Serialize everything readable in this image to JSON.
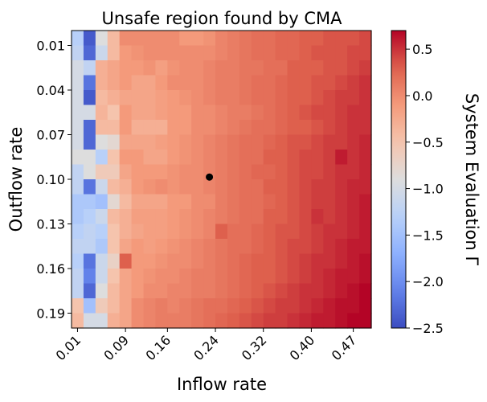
{
  "chart_data": {
    "type": "heatmap",
    "title": "Unsafe region found by CMA",
    "xlabel": "Inflow rate",
    "ylabel": "Outflow rate",
    "colorbar_label": "System Evaluation Γ",
    "colormap": "coolwarm",
    "vmin": -2.5,
    "vmax": 0.7,
    "x_tick_labels": [
      "0.01",
      "0.09",
      "0.16",
      "0.24",
      "0.32",
      "0.40",
      "0.47"
    ],
    "x_tick_positions": [
      0.01,
      0.09,
      0.16,
      0.24,
      0.32,
      0.4,
      0.47
    ],
    "y_tick_labels": [
      "0.01",
      "0.04",
      "0.07",
      "0.10",
      "0.13",
      "0.16",
      "0.19"
    ],
    "y_tick_positions": [
      0.01,
      0.04,
      0.07,
      0.1,
      0.13,
      0.16,
      0.19
    ],
    "colorbar_ticks": [
      "0.5",
      "0.0",
      "−0.5",
      "−1.0",
      "−1.5",
      "−2.0",
      "−2.5"
    ],
    "colorbar_tick_values": [
      0.5,
      0.0,
      -0.5,
      -1.0,
      -1.5,
      -2.0,
      -2.5
    ],
    "grid": false,
    "x_range": [
      0.0,
      0.5
    ],
    "y_range": [
      0.0,
      0.2
    ],
    "x_centers": [
      0.01,
      0.03,
      0.05,
      0.07,
      0.09,
      0.11,
      0.13,
      0.15,
      0.17,
      0.19,
      0.21,
      0.23,
      0.25,
      0.27,
      0.29,
      0.31,
      0.33,
      0.35,
      0.37,
      0.39,
      0.41,
      0.43,
      0.45,
      0.47,
      0.49
    ],
    "y_centers": [
      0.005,
      0.015,
      0.025,
      0.035,
      0.045,
      0.055,
      0.065,
      0.075,
      0.085,
      0.095,
      0.105,
      0.115,
      0.125,
      0.135,
      0.145,
      0.155,
      0.165,
      0.175,
      0.185,
      0.195
    ],
    "values": [
      [
        -1.3,
        -2.4,
        -0.9,
        -0.4,
        0.0,
        0.0,
        0.0,
        0.0,
        0.0,
        -0.1,
        -0.1,
        -0.05,
        0.05,
        0.1,
        0.15,
        0.2,
        0.2,
        0.25,
        0.25,
        0.3,
        0.3,
        0.35,
        0.35,
        0.35,
        0.4
      ],
      [
        -1.2,
        -2.3,
        -1.1,
        -0.4,
        -0.1,
        -0.05,
        0.0,
        0.0,
        0.0,
        0.0,
        0.0,
        0.0,
        0.05,
        0.1,
        0.15,
        0.2,
        0.2,
        0.25,
        0.25,
        0.3,
        0.35,
        0.35,
        0.35,
        0.4,
        0.4
      ],
      [
        -1.0,
        -1.2,
        -0.3,
        -0.2,
        -0.1,
        -0.1,
        -0.05,
        -0.15,
        -0.05,
        0.0,
        0.0,
        0.05,
        0.1,
        0.1,
        0.15,
        0.15,
        0.2,
        0.2,
        0.3,
        0.3,
        0.3,
        0.35,
        0.35,
        0.4,
        0.45
      ],
      [
        -1.0,
        -2.2,
        -0.3,
        -0.2,
        -0.1,
        -0.2,
        -0.2,
        -0.1,
        0.0,
        0.0,
        0.0,
        0.05,
        0.1,
        0.1,
        0.15,
        0.2,
        0.2,
        0.25,
        0.3,
        0.3,
        0.35,
        0.35,
        0.4,
        0.45,
        0.5
      ],
      [
        -1.0,
        -2.4,
        -0.4,
        -0.3,
        -0.2,
        -0.2,
        -0.2,
        -0.15,
        -0.1,
        -0.05,
        0.0,
        0.05,
        0.1,
        0.1,
        0.15,
        0.2,
        0.2,
        0.25,
        0.3,
        0.3,
        0.35,
        0.4,
        0.45,
        0.45,
        0.5
      ],
      [
        -1.0,
        -1.0,
        -0.35,
        -0.5,
        -0.1,
        -0.2,
        -0.2,
        -0.15,
        -0.1,
        -0.1,
        0.0,
        0.0,
        0.05,
        0.1,
        0.1,
        0.15,
        0.2,
        0.25,
        0.3,
        0.35,
        0.4,
        0.4,
        0.45,
        0.5,
        0.5
      ],
      [
        -1.0,
        -2.3,
        -0.4,
        -0.4,
        -0.1,
        -0.3,
        -0.3,
        -0.3,
        -0.1,
        -0.1,
        0.0,
        0.0,
        0.05,
        0.1,
        0.15,
        0.2,
        0.2,
        0.25,
        0.3,
        0.3,
        0.35,
        0.4,
        0.45,
        0.5,
        0.5
      ],
      [
        -1.0,
        -2.3,
        -0.9,
        -0.8,
        -0.2,
        -0.2,
        -0.2,
        -0.15,
        -0.1,
        -0.05,
        0.0,
        0.05,
        0.1,
        0.15,
        0.2,
        0.2,
        0.25,
        0.3,
        0.35,
        0.35,
        0.4,
        0.45,
        0.45,
        0.5,
        0.55
      ],
      [
        -0.9,
        -0.9,
        -1.3,
        -0.5,
        -0.1,
        -0.1,
        -0.2,
        -0.2,
        -0.1,
        -0.05,
        0.0,
        0.05,
        0.1,
        0.15,
        0.2,
        0.2,
        0.3,
        0.3,
        0.35,
        0.4,
        0.4,
        0.45,
        0.6,
        0.5,
        0.55
      ],
      [
        -1.2,
        -0.9,
        -0.6,
        -0.6,
        -0.2,
        -0.1,
        -0.1,
        -0.1,
        -0.05,
        0.0,
        0.0,
        0.05,
        0.1,
        0.15,
        0.2,
        0.25,
        0.25,
        0.3,
        0.35,
        0.4,
        0.4,
        0.45,
        0.5,
        0.5,
        0.55
      ],
      [
        -1.2,
        -2.2,
        -1.1,
        -0.4,
        -0.3,
        -0.1,
        -0.05,
        0.0,
        -0.05,
        0.0,
        0.0,
        0.05,
        0.1,
        0.15,
        0.2,
        0.2,
        0.3,
        0.3,
        0.35,
        0.4,
        0.45,
        0.45,
        0.5,
        0.55,
        0.55
      ],
      [
        -1.4,
        -1.4,
        -1.5,
        -0.8,
        -0.4,
        -0.2,
        -0.2,
        -0.2,
        -0.1,
        -0.1,
        0.0,
        0.0,
        0.1,
        0.15,
        0.2,
        0.2,
        0.25,
        0.3,
        0.35,
        0.4,
        0.45,
        0.45,
        0.5,
        0.55,
        0.6
      ],
      [
        -1.4,
        -1.3,
        -1.1,
        -0.4,
        -0.3,
        -0.15,
        -0.15,
        -0.15,
        -0.1,
        -0.05,
        0.0,
        0.05,
        0.1,
        0.15,
        0.2,
        0.2,
        0.3,
        0.3,
        0.35,
        0.4,
        0.5,
        0.45,
        0.5,
        0.55,
        0.6
      ],
      [
        -1.3,
        -1.2,
        -1.3,
        -0.5,
        -0.3,
        -0.2,
        -0.15,
        -0.15,
        -0.1,
        -0.05,
        0.0,
        0.05,
        0.3,
        0.2,
        0.2,
        0.25,
        0.3,
        0.35,
        0.35,
        0.4,
        0.45,
        0.5,
        0.5,
        0.55,
        0.6
      ],
      [
        -1.2,
        -1.2,
        -1.4,
        -0.5,
        -0.2,
        -0.1,
        -0.15,
        -0.1,
        -0.05,
        0.0,
        0.05,
        0.1,
        0.15,
        0.2,
        0.2,
        0.25,
        0.3,
        0.35,
        0.4,
        0.4,
        0.45,
        0.5,
        0.55,
        0.6,
        0.6
      ],
      [
        -1.3,
        -2.2,
        -1.1,
        -0.7,
        0.3,
        -0.1,
        -0.1,
        -0.05,
        0.0,
        0.0,
        0.05,
        0.1,
        0.15,
        0.2,
        0.25,
        0.3,
        0.3,
        0.35,
        0.4,
        0.45,
        0.5,
        0.5,
        0.55,
        0.6,
        0.65
      ],
      [
        -1.2,
        -2.1,
        -1.1,
        -0.5,
        -0.2,
        -0.1,
        -0.05,
        0.0,
        0.0,
        0.05,
        0.1,
        0.1,
        0.15,
        0.2,
        0.25,
        0.3,
        0.3,
        0.35,
        0.4,
        0.45,
        0.5,
        0.55,
        0.6,
        0.6,
        0.65
      ],
      [
        -1.2,
        -2.3,
        -0.9,
        -0.4,
        -0.2,
        -0.1,
        0.0,
        0.0,
        0.05,
        0.05,
        0.1,
        0.1,
        0.15,
        0.2,
        0.25,
        0.3,
        0.35,
        0.4,
        0.45,
        0.5,
        0.5,
        0.55,
        0.6,
        0.65,
        0.7
      ],
      [
        -0.5,
        -1.5,
        -0.6,
        -0.4,
        -0.2,
        0.0,
        0.05,
        0.1,
        0.05,
        0.1,
        0.15,
        0.2,
        0.2,
        0.25,
        0.3,
        0.35,
        0.4,
        0.45,
        0.45,
        0.5,
        0.55,
        0.6,
        0.65,
        0.65,
        0.7
      ],
      [
        -0.4,
        -1.0,
        -1.0,
        -0.3,
        -0.2,
        0.0,
        0.05,
        0.1,
        0.1,
        0.1,
        0.15,
        0.2,
        0.25,
        0.3,
        0.35,
        0.4,
        0.45,
        0.45,
        0.5,
        0.55,
        0.6,
        0.6,
        0.65,
        0.7,
        0.7
      ]
    ],
    "marker": {
      "x": 0.23,
      "y": 0.0985,
      "color": "#000000"
    }
  }
}
